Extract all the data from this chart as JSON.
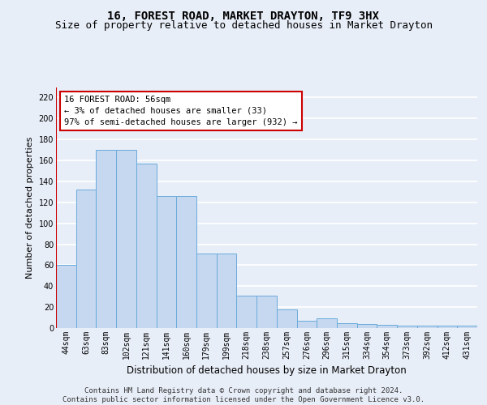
{
  "title": "16, FOREST ROAD, MARKET DRAYTON, TF9 3HX",
  "subtitle": "Size of property relative to detached houses in Market Drayton",
  "xlabel": "Distribution of detached houses by size in Market Drayton",
  "ylabel": "Number of detached properties",
  "categories": [
    "44sqm",
    "63sqm",
    "83sqm",
    "102sqm",
    "121sqm",
    "141sqm",
    "160sqm",
    "179sqm",
    "199sqm",
    "218sqm",
    "238sqm",
    "257sqm",
    "276sqm",
    "296sqm",
    "315sqm",
    "334sqm",
    "354sqm",
    "373sqm",
    "392sqm",
    "412sqm",
    "431sqm"
  ],
  "values": [
    60,
    132,
    170,
    170,
    157,
    126,
    126,
    71,
    71,
    31,
    31,
    18,
    7,
    9,
    5,
    4,
    3,
    2,
    2,
    2,
    2
  ],
  "bar_color": "#c5d8f0",
  "bar_edge_color": "#6aabda",
  "highlight_line_color": "#cc0000",
  "annotation_text": "16 FOREST ROAD: 56sqm\n← 3% of detached houses are smaller (33)\n97% of semi-detached houses are larger (932) →",
  "annotation_box_color": "#ffffff",
  "annotation_box_edge_color": "#cc0000",
  "ylim": [
    0,
    230
  ],
  "yticks": [
    0,
    20,
    40,
    60,
    80,
    100,
    120,
    140,
    160,
    180,
    200,
    220
  ],
  "footer": "Contains HM Land Registry data © Crown copyright and database right 2024.\nContains public sector information licensed under the Open Government Licence v3.0.",
  "background_color": "#e8eef8",
  "plot_bg_color": "#e8eef8",
  "grid_color": "#ffffff",
  "title_fontsize": 10,
  "subtitle_fontsize": 9,
  "ylabel_fontsize": 8,
  "xlabel_fontsize": 8.5,
  "tick_fontsize": 7,
  "annotation_fontsize": 7.5,
  "footer_fontsize": 6.5
}
